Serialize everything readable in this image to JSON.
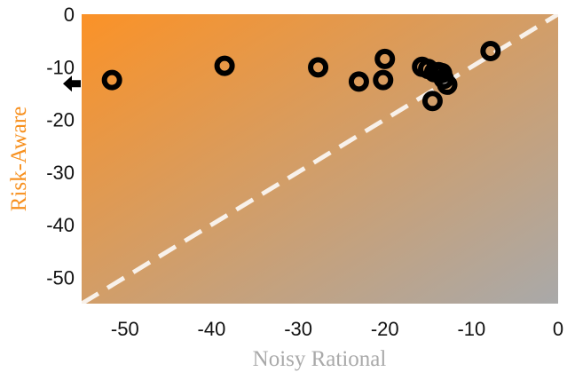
{
  "chart_data": {
    "type": "scatter",
    "title": "",
    "xlabel": "Noisy Rational",
    "ylabel": "Risk-Aware",
    "xlim": [
      -55,
      0
    ],
    "ylim": [
      -55,
      0
    ],
    "xticks": [
      -50,
      -40,
      -30,
      -20,
      -10,
      0
    ],
    "yticks": [
      0,
      -10,
      -20,
      -30,
      -40,
      -50
    ],
    "xtick_labels": [
      "-50",
      "-40",
      "-30",
      "-20",
      "-10",
      "0"
    ],
    "ytick_labels": [
      "0",
      "-10",
      "-20",
      "-30",
      "-40",
      "-50"
    ],
    "grid": false,
    "legend": "none",
    "series": [
      {
        "x": [
          -51.5,
          -38.5,
          -27.7,
          -23.0,
          -20.2,
          -20.0,
          -15.7,
          -15.0,
          -14.3,
          -13.8,
          -13.4,
          -13.2,
          -12.8,
          -14.5,
          -7.8
        ],
        "y": [
          -12.5,
          -9.8,
          -10.1,
          -12.8,
          -12.5,
          -8.5,
          -10.0,
          -10.4,
          -11.0,
          -11.0,
          -11.2,
          -12.3,
          -13.4,
          -16.5,
          -7.0
        ]
      }
    ],
    "reference_line": {
      "style": "dashed",
      "x": [
        -55,
        0
      ],
      "y": [
        -55,
        0
      ]
    },
    "offscale_marker": {
      "direction": "left",
      "y": -13.2
    },
    "colors": {
      "bg_orange": "#fb9227",
      "bg_gray": "#a9a9a9",
      "marker": "#000000",
      "reference_line": "#f8f1ea",
      "ylabel": "#f7901e",
      "xlabel": "#a9a9a9"
    }
  }
}
